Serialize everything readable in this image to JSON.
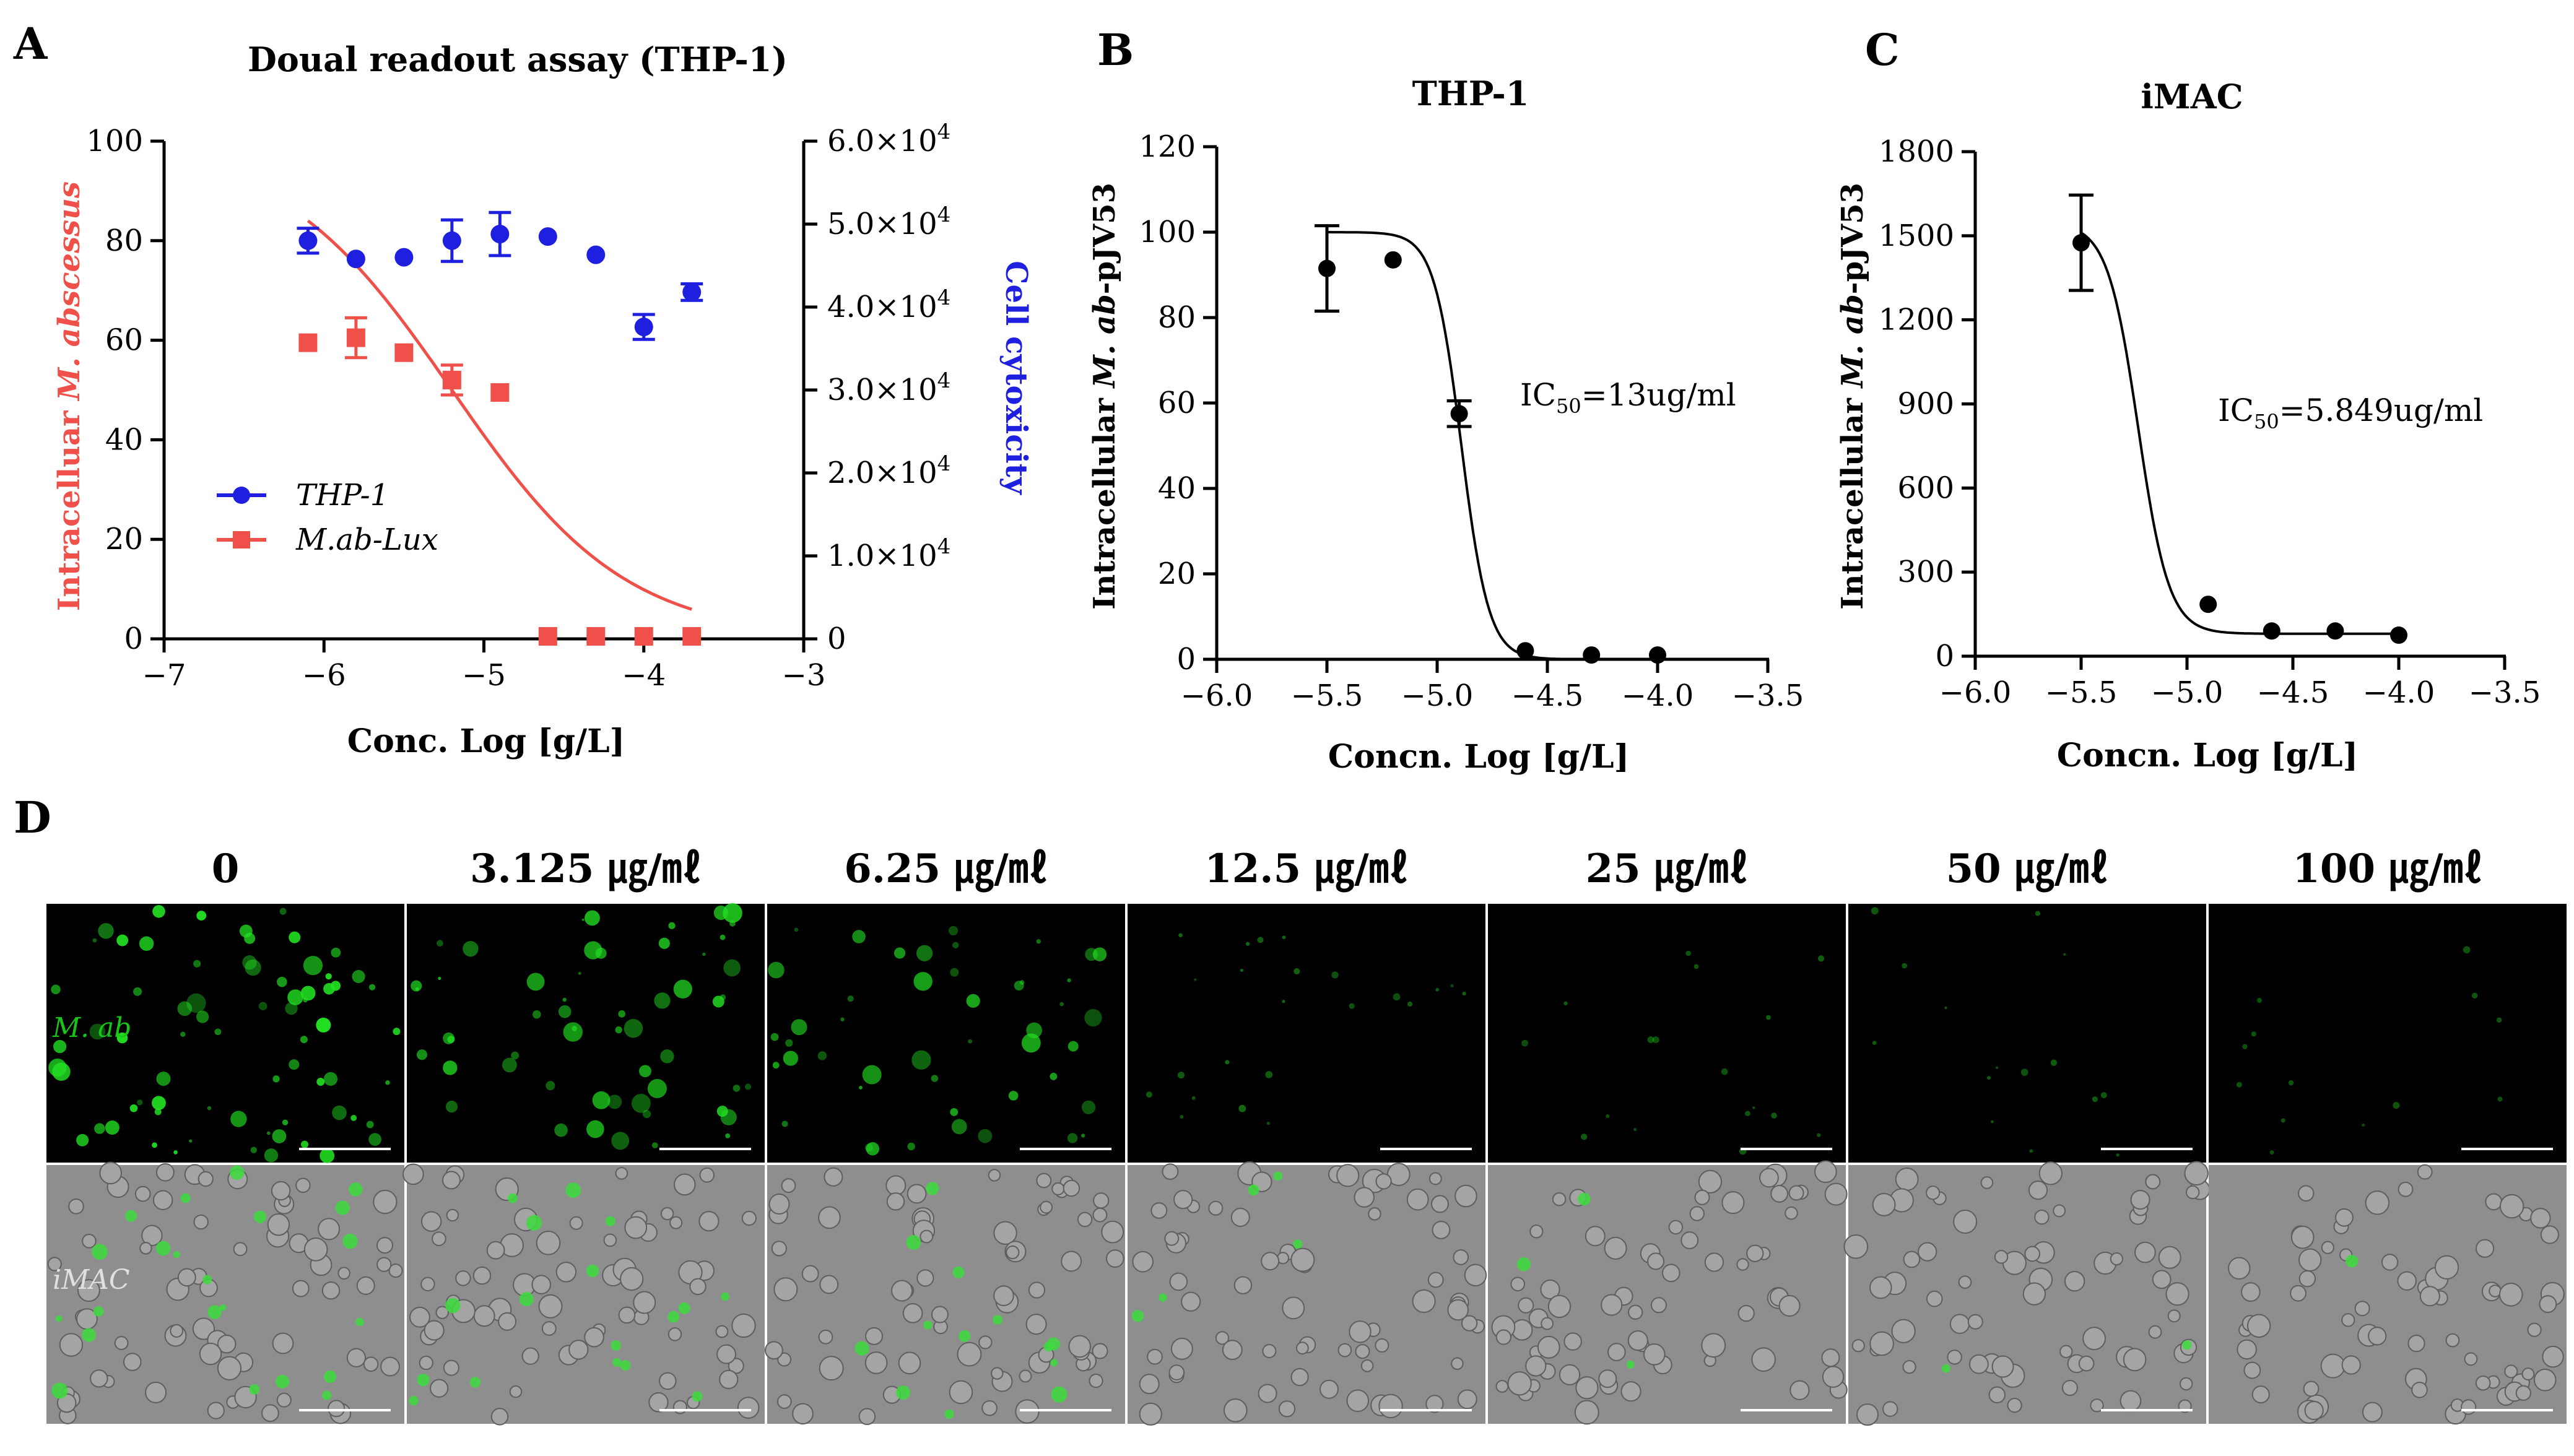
{
  "chart_data": [
    {
      "id": "A",
      "panel_label": "A",
      "type": "scatter",
      "title": "Doual readout assay (THP-1)",
      "xlabel": "Conc. Log [g/L]",
      "ylabel_left": "Intracelluar M. abscessus",
      "ylabel_left_parts": [
        "Intracelluar ",
        "M. abscessus"
      ],
      "ylabel_right": "Cell cytoxicity",
      "xlim": [
        -7,
        -3
      ],
      "x_ticks": [
        -7,
        -6,
        -5,
        -4,
        -3
      ],
      "x_tick_labels": [
        "−7",
        "−6",
        "−5",
        "−4",
        "−3"
      ],
      "ylim_left": [
        0,
        100
      ],
      "y_ticks_left": [
        0,
        20,
        40,
        60,
        80,
        100
      ],
      "y_tick_labels_left": [
        "0",
        "20",
        "40",
        "60",
        "80",
        "100"
      ],
      "ylim_right": [
        0,
        60000
      ],
      "y_ticks_right": [
        0,
        10000,
        20000,
        30000,
        40000,
        50000,
        60000
      ],
      "y_tick_labels_right": [
        {
          "mant": "0",
          "exp": ""
        },
        {
          "mant": "1.0×10",
          "exp": "4"
        },
        {
          "mant": "2.0×10",
          "exp": "4"
        },
        {
          "mant": "3.0×10",
          "exp": "4"
        },
        {
          "mant": "4.0×10",
          "exp": "4"
        },
        {
          "mant": "5.0×10",
          "exp": "4"
        },
        {
          "mant": "6.0×10",
          "exp": "4"
        }
      ],
      "legend": [
        {
          "name": "THP-1",
          "color": "#1f1fe0",
          "marker": "circle"
        },
        {
          "name": "M.ab-Lux",
          "color": "#f0504a",
          "marker": "square"
        }
      ],
      "series": [
        {
          "name": "THP-1",
          "axis": "right",
          "color": "#1f1fe0",
          "marker": "circle",
          "x": [
            -6.1,
            -5.8,
            -5.5,
            -5.2,
            -4.9,
            -4.6,
            -4.3,
            -4.0,
            -3.7
          ],
          "y": [
            48000,
            45800,
            46000,
            48000,
            48800,
            48500,
            46300,
            37600,
            41800
          ],
          "err": [
            1500,
            0,
            0,
            2500,
            2600,
            0,
            0,
            1500,
            1000
          ]
        },
        {
          "name": "M.ab-Lux",
          "axis": "left",
          "color": "#f0504a",
          "marker": "square",
          "x": [
            -6.1,
            -5.8,
            -5.5,
            -5.2,
            -4.9,
            -4.6,
            -4.3,
            -4.0,
            -3.7
          ],
          "y": [
            59.5,
            60.5,
            57.5,
            52.0,
            49.5,
            0.5,
            0.5,
            0.5,
            0.5
          ],
          "err": [
            0,
            4.0,
            0,
            3.0,
            0,
            0,
            0,
            0,
            0
          ]
        }
      ],
      "fit_curve": {
        "axis": "left",
        "color": "#f0504a",
        "top": 100,
        "bottom": 0,
        "log_ic50": -5.2,
        "hill": -0.8,
        "x_range": [
          -6.1,
          -3.7
        ]
      }
    },
    {
      "id": "B",
      "panel_label": "B",
      "type": "scatter",
      "title": "THP-1",
      "xlabel": "Concn. Log [g/L]",
      "ylabel": "Intracellular M. ab-pJV53",
      "ylabel_parts": [
        "Intracellular ",
        "M. ab",
        "-pJV53"
      ],
      "xlim": [
        -6.0,
        -3.5
      ],
      "x_ticks": [
        -6.0,
        -5.5,
        -5.0,
        -4.5,
        -4.0,
        -3.5
      ],
      "x_tick_labels": [
        "−6.0",
        "−5.5",
        "−5.0",
        "−4.5",
        "−4.0",
        "−3.5"
      ],
      "ylim": [
        0,
        120
      ],
      "y_ticks": [
        0,
        20,
        40,
        60,
        80,
        100,
        120
      ],
      "y_tick_labels": [
        "0",
        "20",
        "40",
        "60",
        "80",
        "100",
        "120"
      ],
      "annotation": {
        "main": "IC",
        "sub": "50",
        "rest": "=13ug/ml"
      },
      "series": [
        {
          "name": "THP-1",
          "color": "#000000",
          "x": [
            -5.5,
            -5.2,
            -4.9,
            -4.6,
            -4.3,
            -4.0
          ],
          "y": [
            91.5,
            93.5,
            57.5,
            2.0,
            1.0,
            1.0
          ],
          "err": [
            10,
            0,
            3,
            0,
            0,
            0
          ]
        }
      ],
      "fit_curve": {
        "color": "#000000",
        "top": 100,
        "bottom": 0,
        "log_ic50": -4.89,
        "hill": -7,
        "x_range": [
          -5.5,
          -4.0
        ]
      }
    },
    {
      "id": "C",
      "panel_label": "C",
      "type": "scatter",
      "title": "iMAC",
      "xlabel": "Concn. Log [g/L]",
      "ylabel": "Intracellular M. ab-pJV53",
      "ylabel_parts": [
        "Intracellular ",
        "M. ab",
        "-pJV53"
      ],
      "xlim": [
        -6.0,
        -3.5
      ],
      "x_ticks": [
        -6.0,
        -5.5,
        -5.0,
        -4.5,
        -4.0,
        -3.5
      ],
      "x_tick_labels": [
        "−6.0",
        "−5.5",
        "−5.0",
        "−4.5",
        "−4.0",
        "−3.5"
      ],
      "ylim": [
        0,
        1800
      ],
      "y_ticks": [
        0,
        300,
        600,
        900,
        1200,
        1500,
        1800
      ],
      "y_tick_labels": [
        "0",
        "300",
        "600",
        "900",
        "1200",
        "1500",
        "1800"
      ],
      "annotation": {
        "main": "IC",
        "sub": "50",
        "rest": "=5.849ug/ml"
      },
      "series": [
        {
          "name": "iMAC",
          "color": "#000000",
          "x": [
            -5.5,
            -4.9,
            -4.6,
            -4.3,
            -4.0
          ],
          "y": [
            1475,
            185,
            90,
            90,
            75
          ],
          "err": [
            170,
            0,
            0,
            0,
            0
          ]
        }
      ],
      "fit_curve": {
        "color": "#000000",
        "top": 1545,
        "bottom": 80,
        "log_ic50": -5.23,
        "hill": -6,
        "x_range": [
          -5.5,
          -4.0
        ]
      }
    }
  ],
  "panel_d": {
    "panel_label": "D",
    "columns": [
      "0",
      "3.125 ㎍/㎖",
      "6.25 ㎍/㎖",
      "12.5 ㎍/㎖",
      "25 ㎍/㎖",
      "50 ㎍/㎖",
      "100 ㎍/㎖"
    ],
    "row_labels": [
      "M. ab",
      "iMAC"
    ],
    "row_label_colors": [
      "#19c419",
      "#e0e0e0"
    ],
    "fluorescence_intensity": [
      1.0,
      0.75,
      0.6,
      0.22,
      0.12,
      0.08,
      0.05
    ]
  }
}
